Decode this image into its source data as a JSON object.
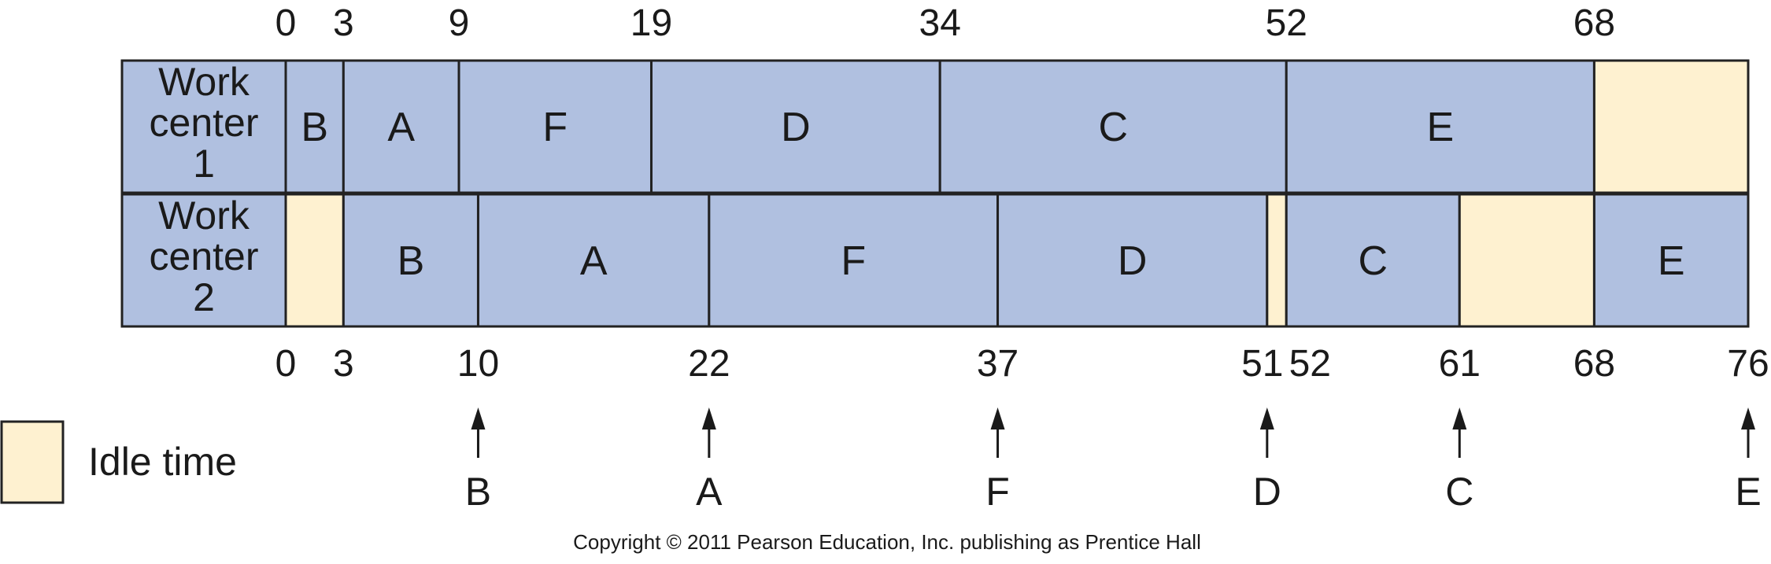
{
  "colors": {
    "job": "#b0c0e0",
    "idle": "#fef1d0",
    "border": "#222222"
  },
  "row_labels": [
    [
      "Work",
      "center",
      "1"
    ],
    [
      "Work",
      "center",
      "2"
    ]
  ],
  "wc1": [
    {
      "label": "B",
      "start": 0,
      "end": 3,
      "idle": false
    },
    {
      "label": "A",
      "start": 3,
      "end": 9,
      "idle": false
    },
    {
      "label": "F",
      "start": 9,
      "end": 19,
      "idle": false
    },
    {
      "label": "D",
      "start": 19,
      "end": 34,
      "idle": false
    },
    {
      "label": "C",
      "start": 34,
      "end": 52,
      "idle": false
    },
    {
      "label": "E",
      "start": 52,
      "end": 68,
      "idle": false
    },
    {
      "label": "",
      "start": 68,
      "end": 76,
      "idle": true
    }
  ],
  "wc2": [
    {
      "label": "",
      "start": 0,
      "end": 3,
      "idle": true
    },
    {
      "label": "B",
      "start": 3,
      "end": 10,
      "idle": false
    },
    {
      "label": "A",
      "start": 10,
      "end": 22,
      "idle": false
    },
    {
      "label": "F",
      "start": 22,
      "end": 37,
      "idle": false
    },
    {
      "label": "D",
      "start": 37,
      "end": 51,
      "idle": false
    },
    {
      "label": "",
      "start": 51,
      "end": 52,
      "idle": true
    },
    {
      "label": "C",
      "start": 52,
      "end": 61,
      "idle": false
    },
    {
      "label": "",
      "start": 61,
      "end": 68,
      "idle": true
    },
    {
      "label": "E",
      "start": 68,
      "end": 76,
      "idle": false
    }
  ],
  "top_ticks": [
    "0",
    "3",
    "9",
    "19",
    "34",
    "52",
    "68"
  ],
  "bottom_ticks": [
    "0",
    "3",
    "10",
    "22",
    "37",
    "51",
    "52",
    "61",
    "68",
    "76"
  ],
  "completions": [
    {
      "time": 10,
      "job": "B"
    },
    {
      "time": 22,
      "job": "A"
    },
    {
      "time": 37,
      "job": "F"
    },
    {
      "time": 51,
      "job": "D"
    },
    {
      "time": 61,
      "job": "C"
    },
    {
      "time": 76,
      "job": "E"
    }
  ],
  "legend": {
    "label": "Idle time"
  },
  "copyright": "Copyright © 2011 Pearson Education, Inc. publishing as Prentice Hall"
}
